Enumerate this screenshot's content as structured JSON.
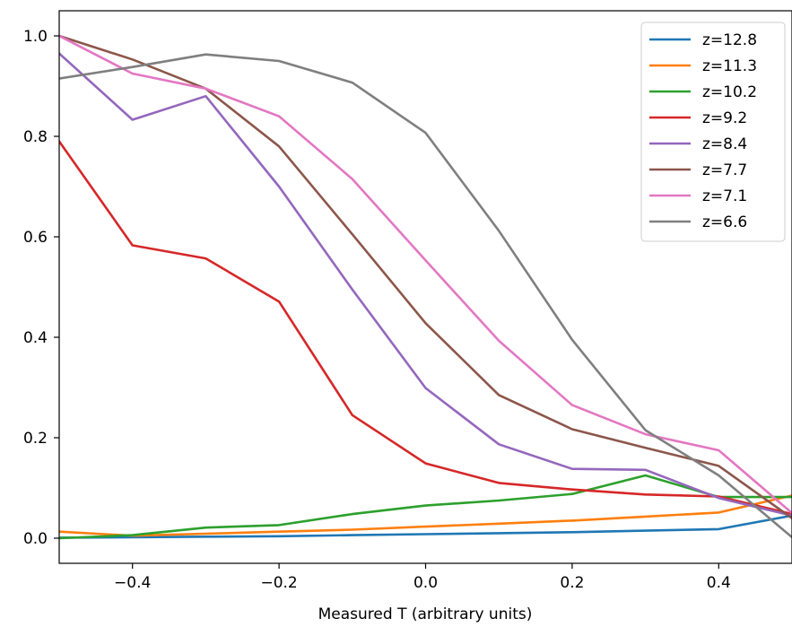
{
  "chart_data": {
    "type": "line",
    "title": "",
    "xlabel": "Measured T (arbitrary units)",
    "ylabel": "",
    "xlim": [
      -0.5,
      0.5
    ],
    "ylim": [
      -0.05,
      1.05
    ],
    "xticks": [
      -0.4,
      -0.2,
      0.0,
      0.2,
      0.4
    ],
    "xtick_labels": [
      "−0.4",
      "−0.2",
      "0.0",
      "0.2",
      "0.4"
    ],
    "yticks": [
      0.0,
      0.2,
      0.4,
      0.6,
      0.8,
      1.0
    ],
    "ytick_labels": [
      "0.0",
      "0.2",
      "0.4",
      "0.6",
      "0.8",
      "1.0"
    ],
    "grid": false,
    "legend_position": "top-right",
    "x": [
      -0.5,
      -0.4,
      -0.3,
      -0.2,
      -0.1,
      0.0,
      0.1,
      0.2,
      0.3,
      0.4,
      0.5
    ],
    "series": [
      {
        "name": "z=12.8",
        "color": "#1f77b4",
        "values": [
          0.001,
          0.002,
          0.003,
          0.004,
          0.006,
          0.008,
          0.01,
          0.012,
          0.015,
          0.018,
          0.045
        ]
      },
      {
        "name": "z=11.3",
        "color": "#ff7f0e",
        "values": [
          0.013,
          0.005,
          0.009,
          0.013,
          0.017,
          0.023,
          0.029,
          0.035,
          0.043,
          0.051,
          0.085
        ]
      },
      {
        "name": "z=10.2",
        "color": "#2ca02c",
        "values": [
          0.0,
          0.006,
          0.021,
          0.026,
          0.048,
          0.065,
          0.075,
          0.088,
          0.125,
          0.082,
          0.082
        ]
      },
      {
        "name": "z=9.2",
        "color": "#d62728",
        "values": [
          0.79,
          0.583,
          0.557,
          0.471,
          0.245,
          0.149,
          0.11,
          0.097,
          0.087,
          0.083,
          0.048
        ]
      },
      {
        "name": "z=8.4",
        "color": "#9467bd",
        "values": [
          0.965,
          0.833,
          0.88,
          0.7,
          0.495,
          0.299,
          0.187,
          0.138,
          0.136,
          0.08,
          0.045
        ]
      },
      {
        "name": "z=7.7",
        "color": "#8c564b",
        "values": [
          1.0,
          0.953,
          0.895,
          0.78,
          0.605,
          0.428,
          0.285,
          0.217,
          0.18,
          0.144,
          0.04
        ]
      },
      {
        "name": "z=7.1",
        "color": "#e377c2",
        "values": [
          1.0,
          0.925,
          0.895,
          0.84,
          0.715,
          0.553,
          0.393,
          0.265,
          0.207,
          0.175,
          0.05
        ]
      },
      {
        "name": "z=6.6",
        "color": "#7f7f7f",
        "values": [
          0.915,
          0.938,
          0.963,
          0.95,
          0.907,
          0.807,
          0.612,
          0.395,
          0.215,
          0.125,
          0.002
        ]
      }
    ]
  }
}
